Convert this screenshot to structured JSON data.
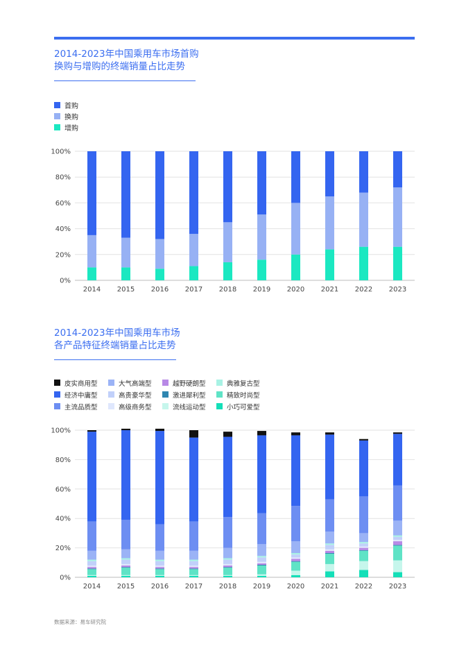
{
  "colors": {
    "accent": "#3b6ef0",
    "grid": "#e2e2e2",
    "axis": "#bbbbbb"
  },
  "source": "数据来源：易车研究院",
  "chart_data": [
    {
      "type": "bar",
      "stacked": true,
      "title_line1": "2014-2023年中国乘用车市场首购",
      "title_line2": "换购与增购的终端销量占比走势",
      "categories": [
        "2014",
        "2015",
        "2016",
        "2017",
        "2018",
        "2019",
        "2020",
        "2021",
        "2022",
        "2023"
      ],
      "yticks": [
        "0%",
        "20%",
        "40%",
        "60%",
        "80%",
        "100%"
      ],
      "ylim": [
        0,
        100
      ],
      "legend": "top-left",
      "grid": true,
      "series": [
        {
          "name": "首购",
          "color": "#3465f0",
          "values": [
            65,
            67,
            68,
            64,
            55,
            49,
            40,
            35,
            32,
            28
          ]
        },
        {
          "name": "换购",
          "color": "#97b1f4",
          "values": [
            25,
            23,
            23,
            25,
            31,
            35,
            40,
            41,
            42,
            46
          ]
        },
        {
          "name": "增购",
          "color": "#1be8c1",
          "values": [
            10,
            10,
            9,
            11,
            14,
            16,
            20,
            24,
            26,
            26
          ]
        }
      ]
    },
    {
      "type": "bar",
      "stacked": true,
      "title_line1": "2014-2023年中国乘用车市场",
      "title_line2": "各产品特征终端销量占比走势",
      "categories": [
        "2014",
        "2015",
        "2016",
        "2017",
        "2018",
        "2019",
        "2020",
        "2021",
        "2022",
        "2023"
      ],
      "yticks": [
        "0%",
        "20%",
        "40%",
        "60%",
        "80%",
        "100%"
      ],
      "ylim": [
        0,
        100
      ],
      "legend": "top-left",
      "grid": true,
      "stack_order": [
        "小巧可爱型",
        "流线运动型",
        "精致时尚型",
        "激进犀利型",
        "越野硬朗型",
        "高级商务型",
        "高贵豪华型",
        "典雅复古型",
        "大气高端型",
        "主流品质型",
        "经济中庸型",
        "皮实商用型"
      ],
      "series": [
        {
          "name": "皮实商用型",
          "color": "#111111",
          "values": [
            1,
            1,
            1.5,
            5,
            3.5,
            3,
            2,
            1.5,
            1,
            1
          ]
        },
        {
          "name": "经济中庸型",
          "color": "#3465f0",
          "values": [
            61,
            61,
            63.5,
            57,
            54.5,
            53,
            48,
            44,
            38,
            35
          ]
        },
        {
          "name": "主流品质型",
          "color": "#6d8ef2",
          "values": [
            20,
            20,
            18,
            20,
            21,
            21,
            24,
            22,
            25,
            24
          ]
        },
        {
          "name": "大气高端型",
          "color": "#9bb3f6",
          "values": [
            6,
            6,
            6,
            6,
            7,
            8,
            8,
            8,
            6,
            10
          ]
        },
        {
          "name": "高贵豪华型",
          "color": "#c1d0fa",
          "values": [
            3,
            3,
            3,
            3,
            3,
            3,
            2,
            3,
            2,
            2
          ]
        },
        {
          "name": "高级商务型",
          "color": "#dfe7fd",
          "values": [
            1,
            1,
            1,
            1,
            1,
            1,
            1,
            1,
            1,
            1
          ]
        },
        {
          "name": "越野硬朗型",
          "color": "#b889e6",
          "values": [
            1,
            1,
            1,
            1,
            1,
            1,
            1.5,
            1.5,
            1.5,
            2.5
          ]
        },
        {
          "name": "激进犀利型",
          "color": "#2f86b0",
          "values": [
            0.5,
            0.5,
            0.5,
            0.5,
            0.5,
            0.5,
            0.5,
            0.5,
            0.5,
            0.5
          ]
        },
        {
          "name": "典雅复古型",
          "color": "#a8f2e4",
          "values": [
            1,
            1,
            1,
            1,
            1,
            1,
            1,
            1,
            1,
            1
          ]
        },
        {
          "name": "流线运动型",
          "color": "#c6f6ec",
          "values": [
            0.5,
            0.5,
            0.5,
            0.5,
            0.5,
            1,
            3,
            5,
            6,
            8
          ]
        },
        {
          "name": "精致时尚型",
          "color": "#5fe3c6",
          "values": [
            4,
            5,
            4,
            4,
            5,
            6,
            6,
            7,
            7,
            10
          ]
        },
        {
          "name": "小巧可爱型",
          "color": "#14dfb8",
          "values": [
            1,
            1,
            1,
            1,
            1,
            1,
            1.5,
            4,
            5,
            3.5
          ]
        }
      ],
      "legend_layout": [
        [
          "皮实商用型",
          "大气高端型",
          "越野硬朗型",
          "典雅复古型"
        ],
        [
          "经济中庸型",
          "高贵豪华型",
          "激进犀利型",
          "精致时尚型"
        ],
        [
          "主流品质型",
          "高级商务型",
          "流线运动型",
          "小巧可爱型"
        ]
      ]
    }
  ]
}
